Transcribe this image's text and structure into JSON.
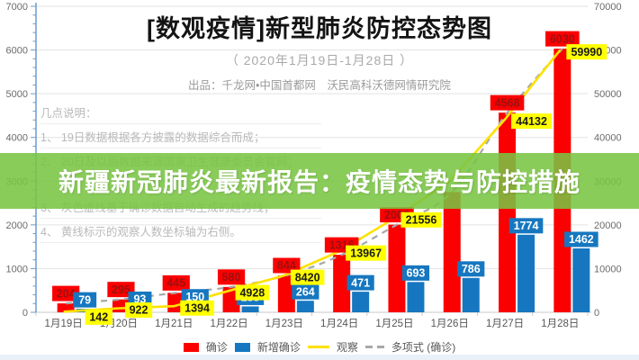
{
  "header": {
    "title": "[数观疫情]新型肺炎防控态势图",
    "subtitle": "（ 2020年1月19日-1月28日 ）",
    "producer": "出品：千龙网•中国首都网　沃民高科沃德网情研究院"
  },
  "overlay_banner": {
    "text": "新疆新冠肺炎最新报告：疫情态势与防控措施",
    "bg_color": "#79c442"
  },
  "notes": {
    "heading": "几点说明：",
    "items": [
      "1、 19日数据根据各方披露的数据综合而成；",
      "2、 20日及以后数据来源国家卫生健康委员会官网；",
      "3、 灰色虚线基于确诊数据自动生成的趋势线；",
      "4、 黄线标示的观察人数坐标轴为右侧。"
    ]
  },
  "chart_data": {
    "type": "bar",
    "title": "[数观疫情]新型肺炎防控态势图",
    "categories": [
      "1月19日",
      "1月20日",
      "1月21日",
      "1月22日",
      "1月23日",
      "1月24日",
      "1月25日",
      "1月26日",
      "1月27日",
      "1月28日"
    ],
    "series": [
      {
        "name": "确诊",
        "type": "bar",
        "axis": "left",
        "color": "#fb0000",
        "label_bg": "#fb0000",
        "label_color": "#9c1010",
        "values": [
          204,
          295,
          445,
          580,
          844,
          1315,
          2006,
          2750,
          4568,
          6030
        ],
        "visible_labels": [
          "204",
          "295",
          "445",
          "580",
          "844",
          "1315",
          "2006",
          null,
          "4568",
          "6030"
        ]
      },
      {
        "name": "新增确诊",
        "type": "bar",
        "axis": "left",
        "color": "#1677c0",
        "label_bg": "#1677c0",
        "label_color": "#ffffff",
        "values": [
          79,
          93,
          150,
          135,
          264,
          471,
          693,
          786,
          1774,
          1462
        ],
        "visible_labels": [
          "79",
          "93",
          "150",
          "135",
          "264",
          "471",
          "693",
          "786",
          "1774",
          "1462"
        ]
      },
      {
        "name": "观察",
        "type": "line",
        "axis": "right",
        "color": "#ffe100",
        "label_bg": "#ffff00",
        "label_color": "#1a1a1a",
        "values": [
          142,
          922,
          1394,
          4928,
          8420,
          13967,
          21556,
          30000,
          44132,
          59990
        ],
        "visible_labels": [
          "142",
          "922",
          "1394",
          "4928",
          "8420",
          "13967",
          "21556",
          null,
          "44132",
          "59990"
        ]
      },
      {
        "name": "多项式 (确诊)",
        "type": "trendline",
        "axis": "left",
        "color": "#a8a8a8",
        "dashed": true,
        "based_on": "确诊"
      }
    ],
    "left_axis": {
      "min": 0,
      "max": 7000,
      "major_step": 1000,
      "tick_labels": [
        "0",
        "1000",
        "2000",
        "3000",
        "4000",
        "5000",
        "6000",
        "7000"
      ]
    },
    "right_axis": {
      "min": 0,
      "max": 70000,
      "major_step": 10000,
      "tick_labels": [
        "0",
        "10000",
        "20000",
        "30000",
        "40000",
        "50000",
        "60000",
        "70000"
      ]
    },
    "legend_position": "bottom",
    "grid": true
  }
}
